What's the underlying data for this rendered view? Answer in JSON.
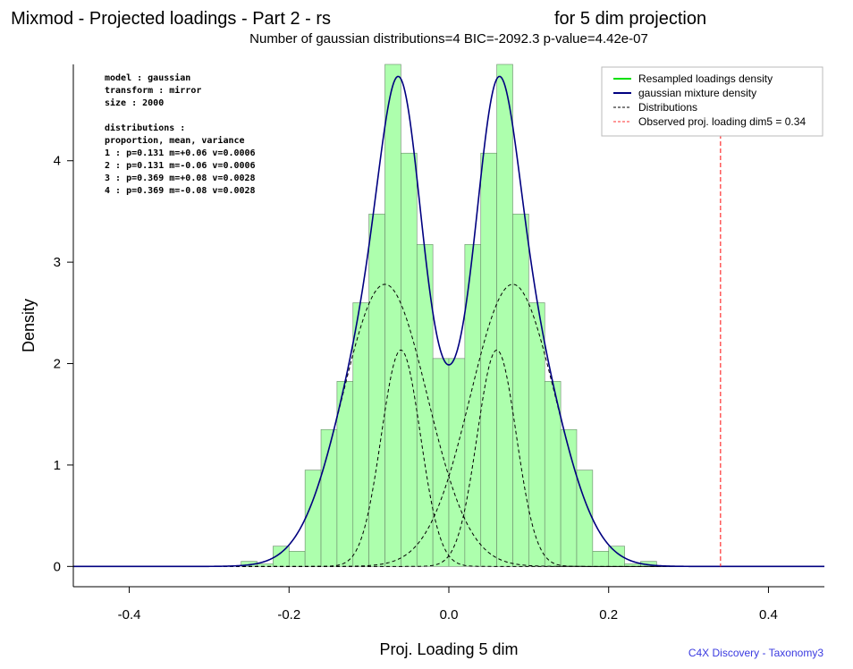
{
  "title": "Mixmod - Projected loadings - Part 2 - rs",
  "title_suffix": "for 5 dim projection",
  "subtitle": "Number of gaussian distributions=4  BIC=-2092.3   p-value=4.42e-07",
  "credit": "C4X Discovery - Taxonomy3",
  "info_box": [
    "model     : gaussian",
    "transform : mirror",
    "size      : 2000",
    "",
    "distributions :",
    "proportion, mean, variance",
    "1 : p=0.131 m=+0.06 v=0.0006",
    "2 : p=0.131 m=-0.06 v=0.0006",
    "3 : p=0.369 m=+0.08 v=0.0028",
    "4 : p=0.369 m=-0.08 v=0.0028"
  ],
  "colors": {
    "hist_fill": "#adffad",
    "hist_stroke": "#6a8a6a",
    "mixture": "#000080",
    "resampled": "#00e000",
    "components": "#000000",
    "observed": "#ff3030"
  },
  "chart_data": {
    "type": "histogram",
    "xlabel": "Proj. Loading 5 dim",
    "ylabel": "Density",
    "xlim": [
      -0.47,
      0.47
    ],
    "ylim": [
      -0.2,
      4.95
    ],
    "xticks": [
      -0.4,
      -0.2,
      0.0,
      0.2,
      0.4
    ],
    "xtick_labels": [
      "-0.4",
      "-0.2",
      "0.0",
      "0.2",
      "0.4"
    ],
    "yticks": [
      0,
      1,
      2,
      3,
      4
    ],
    "ytick_labels": [
      "0",
      "1",
      "2",
      "3",
      "4"
    ],
    "bin_width": 0.02,
    "bins": [
      {
        "x0": -0.26,
        "x1": -0.24,
        "density": 0.05
      },
      {
        "x0": -0.24,
        "x1": -0.22,
        "density": 0.025
      },
      {
        "x0": -0.22,
        "x1": -0.2,
        "density": 0.2
      },
      {
        "x0": -0.2,
        "x1": -0.18,
        "density": 0.15
      },
      {
        "x0": -0.18,
        "x1": -0.16,
        "density": 0.95
      },
      {
        "x0": -0.16,
        "x1": -0.14,
        "density": 1.35
      },
      {
        "x0": -0.14,
        "x1": -0.12,
        "density": 1.825
      },
      {
        "x0": -0.12,
        "x1": -0.1,
        "density": 2.6
      },
      {
        "x0": -0.1,
        "x1": -0.08,
        "density": 3.475
      },
      {
        "x0": -0.08,
        "x1": -0.06,
        "density": 4.95
      },
      {
        "x0": -0.06,
        "x1": -0.04,
        "density": 4.075
      },
      {
        "x0": -0.04,
        "x1": -0.02,
        "density": 3.175
      },
      {
        "x0": -0.02,
        "x1": 0.0,
        "density": 2.05
      },
      {
        "x0": 0.0,
        "x1": 0.02,
        "density": 2.05
      },
      {
        "x0": 0.02,
        "x1": 0.04,
        "density": 3.175
      },
      {
        "x0": 0.04,
        "x1": 0.06,
        "density": 4.075
      },
      {
        "x0": 0.06,
        "x1": 0.08,
        "density": 4.95
      },
      {
        "x0": 0.08,
        "x1": 0.1,
        "density": 3.475
      },
      {
        "x0": 0.1,
        "x1": 0.12,
        "density": 2.6
      },
      {
        "x0": 0.12,
        "x1": 0.14,
        "density": 1.825
      },
      {
        "x0": 0.14,
        "x1": 0.16,
        "density": 1.35
      },
      {
        "x0": 0.16,
        "x1": 0.18,
        "density": 0.95
      },
      {
        "x0": 0.18,
        "x1": 0.2,
        "density": 0.15
      },
      {
        "x0": 0.2,
        "x1": 0.22,
        "density": 0.2
      },
      {
        "x0": 0.22,
        "x1": 0.24,
        "density": 0.025
      },
      {
        "x0": 0.24,
        "x1": 0.26,
        "density": 0.05
      }
    ],
    "components": [
      {
        "p": 0.131,
        "m": 0.06,
        "v": 0.0006
      },
      {
        "p": 0.131,
        "m": -0.06,
        "v": 0.0006
      },
      {
        "p": 0.369,
        "m": 0.08,
        "v": 0.0028
      },
      {
        "p": 0.369,
        "m": -0.08,
        "v": 0.0028
      }
    ],
    "observed": {
      "x": 0.34
    },
    "legend": {
      "position": "top-right",
      "entries": [
        {
          "label": "Resampled loadings density",
          "style": "solid",
          "color": "#00e000"
        },
        {
          "label": "gaussian mixture density",
          "style": "solid",
          "color": "#000080"
        },
        {
          "label": "Distributions",
          "style": "dashed",
          "color": "#000000"
        },
        {
          "label": "Observed proj. loading dim5 = 0.34",
          "style": "dashed",
          "color": "#ff3030"
        }
      ]
    }
  }
}
